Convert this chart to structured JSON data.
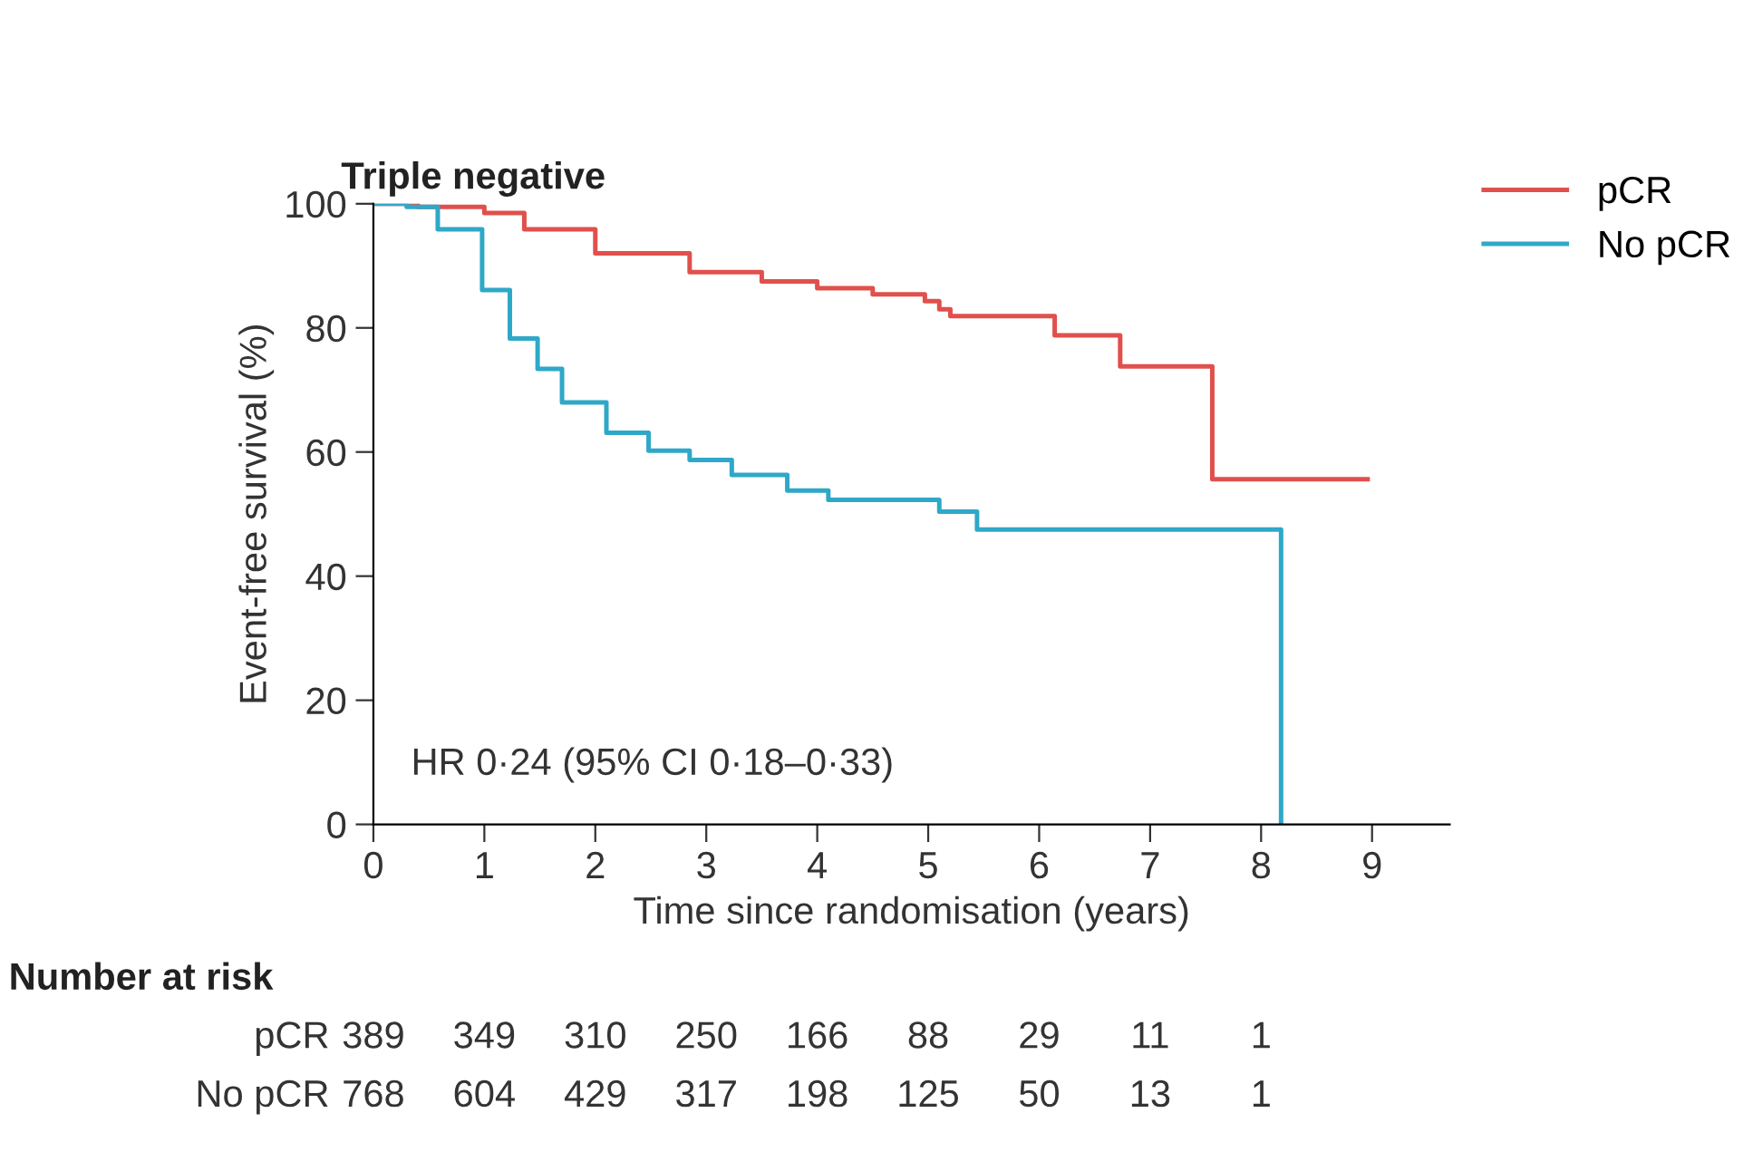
{
  "chart_data": {
    "type": "step",
    "title": "Triple negative",
    "xlabel": "Time since randomisation (years)",
    "ylabel": "Event-free survival (%)",
    "xlim": [
      0,
      9.7
    ],
    "xticks": [
      0,
      1,
      2,
      3,
      4,
      5,
      6,
      7,
      8,
      9
    ],
    "ylim": [
      0,
      100
    ],
    "yticks": [
      0,
      20,
      40,
      60,
      80,
      100
    ],
    "grid": false,
    "legend": "top right",
    "series": [
      {
        "name": "pCR",
        "color": "#e0504c",
        "x": [
          0,
          0.4,
          1.0,
          1.36,
          2.0,
          2.85,
          3.5,
          4.0,
          4.5,
          4.97,
          5.1,
          5.2,
          6.14,
          6.73,
          7.56,
          8.96
        ],
        "values": [
          100,
          99.5,
          98.5,
          95.9,
          92,
          89,
          87.5,
          86.4,
          85.4,
          84.3,
          83,
          81.9,
          78.8,
          73.8,
          55.6,
          55.6
        ]
      },
      {
        "name": "No pCR",
        "color": "#2fa8c8",
        "x": [
          0,
          0.3,
          0.58,
          0.98,
          1.23,
          1.48,
          1.7,
          2.1,
          2.48,
          2.85,
          3.23,
          3.73,
          4.1,
          5.1,
          5.44,
          8.18,
          8.18
        ],
        "values": [
          100,
          99.5,
          95.9,
          86.1,
          78.3,
          73.4,
          68,
          63.1,
          60.2,
          58.7,
          56.3,
          53.8,
          52.3,
          50.4,
          47.5,
          47.5,
          0
        ]
      }
    ],
    "annotations": [
      "HR 0·24 (95% CI 0·18–0·33)",
      "Number at risk",
      "pCR",
      "389",
      "349",
      "310",
      "250",
      "166",
      "88",
      "29",
      "11",
      "1",
      "No pCR",
      "768",
      "604",
      "429",
      "317",
      "198",
      "125",
      "50",
      "13",
      "1"
    ]
  }
}
